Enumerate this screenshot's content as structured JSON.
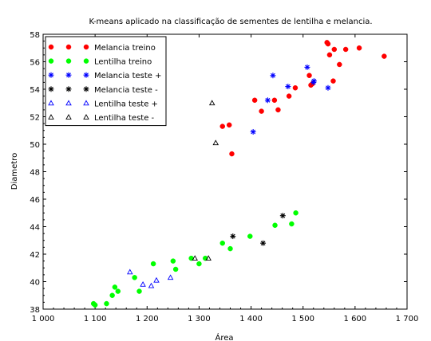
{
  "chart_data": {
    "type": "scatter",
    "title": "K-means aplicado na classificação de sementes de lentilha e melancia.",
    "xlabel": "Área",
    "ylabel": "Diametro",
    "xlim": [
      1000,
      1700
    ],
    "ylim": [
      38,
      58
    ],
    "xticks": [
      1000,
      1100,
      1200,
      1300,
      1400,
      1500,
      1600,
      1700
    ],
    "xtick_labels": [
      "1 000",
      "1 100",
      "1 200",
      "1 300",
      "1 400",
      "1 500",
      "1 600",
      "1 700"
    ],
    "yticks": [
      38,
      40,
      42,
      44,
      46,
      48,
      50,
      52,
      54,
      56,
      58
    ],
    "ytick_labels": [
      "38",
      "40",
      "42",
      "44",
      "46",
      "48",
      "50",
      "52",
      "54",
      "56",
      "58"
    ],
    "grid": false,
    "legend_position": "top-left",
    "series": [
      {
        "name": "Melancia treino",
        "marker": "circle",
        "color": "#ff0000",
        "points": [
          [
            1345,
            51.3
          ],
          [
            1358,
            51.4
          ],
          [
            1363,
            49.3
          ],
          [
            1407,
            53.2
          ],
          [
            1420,
            52.4
          ],
          [
            1445,
            53.2
          ],
          [
            1452,
            52.5
          ],
          [
            1473,
            53.5
          ],
          [
            1485,
            54.1
          ],
          [
            1512,
            55.0
          ],
          [
            1515,
            54.3
          ],
          [
            1518,
            54.4
          ],
          [
            1546,
            57.4
          ],
          [
            1548,
            57.3
          ],
          [
            1551,
            56.5
          ],
          [
            1558,
            54.6
          ],
          [
            1560,
            56.9
          ],
          [
            1570,
            55.8
          ],
          [
            1582,
            56.9
          ],
          [
            1608,
            57.0
          ],
          [
            1656,
            56.4
          ]
        ]
      },
      {
        "name": "Lentilha treino",
        "marker": "circle",
        "color": "#00ff00",
        "points": [
          [
            1097,
            38.4
          ],
          [
            1100,
            38.3
          ],
          [
            1122,
            38.4
          ],
          [
            1133,
            39.0
          ],
          [
            1138,
            39.6
          ],
          [
            1144,
            39.3
          ],
          [
            1176,
            40.3
          ],
          [
            1185,
            39.3
          ],
          [
            1212,
            41.3
          ],
          [
            1250,
            41.5
          ],
          [
            1255,
            40.9
          ],
          [
            1285,
            41.7
          ],
          [
            1300,
            41.3
          ],
          [
            1312,
            41.7
          ],
          [
            1345,
            42.8
          ],
          [
            1360,
            42.4
          ],
          [
            1398,
            43.3
          ],
          [
            1446,
            44.1
          ],
          [
            1478,
            44.2
          ],
          [
            1486,
            45.0
          ]
        ]
      },
      {
        "name": "Melancia teste +",
        "marker": "star",
        "color": "#0000ff",
        "points": [
          [
            1404,
            50.9
          ],
          [
            1432,
            53.2
          ],
          [
            1442,
            55.0
          ],
          [
            1471,
            54.2
          ],
          [
            1508,
            55.6
          ],
          [
            1520,
            54.5
          ],
          [
            1521,
            54.6
          ],
          [
            1548,
            54.1
          ]
        ]
      },
      {
        "name": "Melancia teste -",
        "marker": "star",
        "color": "#000000",
        "points": [
          [
            1365,
            43.3
          ],
          [
            1423,
            42.8
          ],
          [
            1461,
            44.8
          ]
        ]
      },
      {
        "name": "Lentilha teste +",
        "marker": "triangle",
        "color": "#0000ff",
        "points": [
          [
            1167,
            40.7
          ],
          [
            1192,
            39.8
          ],
          [
            1208,
            39.7
          ],
          [
            1218,
            40.1
          ],
          [
            1245,
            40.3
          ]
        ]
      },
      {
        "name": "Lentilha teste -",
        "marker": "triangle",
        "color": "#000000",
        "points": [
          [
            1292,
            41.7
          ],
          [
            1318,
            41.7
          ],
          [
            1325,
            53.0
          ],
          [
            1332,
            50.1
          ]
        ]
      }
    ]
  }
}
